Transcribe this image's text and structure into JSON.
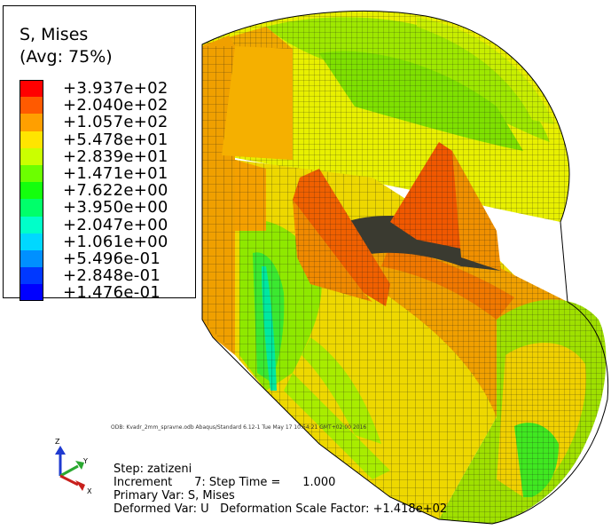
{
  "legend": {
    "title_line1": "S, Mises",
    "title_line2": "(Avg: 75%)",
    "entries": [
      {
        "value": "+3.937e+02",
        "color": "#ff0000"
      },
      {
        "value": "+2.040e+02",
        "color": "#ff5a00"
      },
      {
        "value": "+1.057e+02",
        "color": "#ff9f00"
      },
      {
        "value": "+5.478e+01",
        "color": "#ffe500"
      },
      {
        "value": "+2.839e+01",
        "color": "#cbff00"
      },
      {
        "value": "+1.471e+01",
        "color": "#6cff00"
      },
      {
        "value": "+7.622e+00",
        "color": "#14ff0d"
      },
      {
        "value": "+3.950e+00",
        "color": "#00ff6a"
      },
      {
        "value": "+2.047e+00",
        "color": "#00ffc9"
      },
      {
        "value": "+1.061e+00",
        "color": "#00d8ff"
      },
      {
        "value": "+5.496e-01",
        "color": "#0090ff"
      },
      {
        "value": "+2.848e-01",
        "color": "#0038ff"
      },
      {
        "value": "+1.476e-01",
        "color": "#0000ff"
      }
    ]
  },
  "odb_line": "ODB: Kvadr_2mm_spravne.odb    Abaqus/Standard 6.12-1    Tue May 17 10:54:21 GMT+02:00 2016",
  "info": {
    "step": "Step: zatizeni",
    "increment": "Increment      7: Step Time =      1.000",
    "primary_var": "Primary Var: S, Mises",
    "deformed_var": "Deformed Var: U   Deformation Scale Factor: +1.418e+02"
  },
  "triad": {
    "z_label": "Z",
    "y_label": "Y",
    "x_label": "X"
  }
}
